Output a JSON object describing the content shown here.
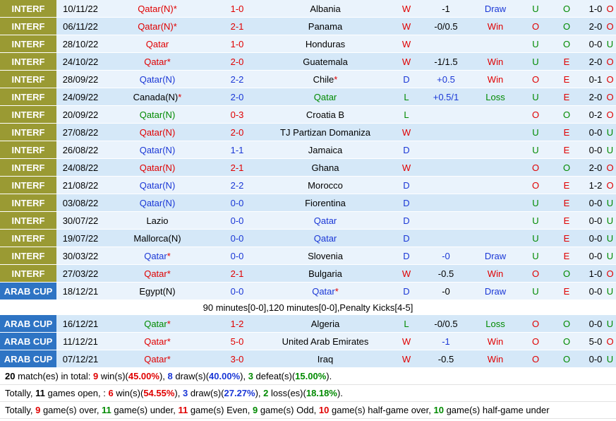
{
  "rows": [
    {
      "comp": "INTERF",
      "type": "interf",
      "date": "10/11/22",
      "home": "Qatar(N)",
      "home_star": "*",
      "home_color": "red",
      "score": "1-0",
      "score_color": "red",
      "away": "Albania",
      "away_star": "",
      "away_color": "black",
      "res": "W",
      "res_color": "red",
      "hcp": "-1",
      "hcp_color": "black",
      "ah": "Draw",
      "ah_color": "blue",
      "ou": "U",
      "ou_color": "green",
      "oe": "O",
      "oe_color": "green",
      "ht": "1-0",
      "last": "O",
      "last_color": "red"
    },
    {
      "comp": "INTERF",
      "type": "interf",
      "date": "06/11/22",
      "home": "Qatar(N)",
      "home_star": "*",
      "home_color": "red",
      "score": "2-1",
      "score_color": "red",
      "away": "Panama",
      "away_star": "",
      "away_color": "black",
      "res": "W",
      "res_color": "red",
      "hcp": "-0/0.5",
      "hcp_color": "black",
      "ah": "Win",
      "ah_color": "red",
      "ou": "O",
      "ou_color": "red",
      "oe": "O",
      "oe_color": "green",
      "ht": "2-0",
      "last": "O",
      "last_color": "red"
    },
    {
      "comp": "INTERF",
      "type": "interf",
      "date": "28/10/22",
      "home": "Qatar",
      "home_star": "",
      "home_color": "red",
      "score": "1-0",
      "score_color": "red",
      "away": "Honduras",
      "away_star": "",
      "away_color": "black",
      "res": "W",
      "res_color": "red",
      "hcp": "",
      "hcp_color": "black",
      "ah": "",
      "ah_color": "black",
      "ou": "U",
      "ou_color": "green",
      "oe": "O",
      "oe_color": "green",
      "ht": "0-0",
      "last": "U",
      "last_color": "green"
    },
    {
      "comp": "INTERF",
      "type": "interf",
      "date": "24/10/22",
      "home": "Qatar",
      "home_star": "*",
      "home_color": "red",
      "score": "2-0",
      "score_color": "red",
      "away": "Guatemala",
      "away_star": "",
      "away_color": "black",
      "res": "W",
      "res_color": "red",
      "hcp": "-1/1.5",
      "hcp_color": "black",
      "ah": "Win",
      "ah_color": "red",
      "ou": "U",
      "ou_color": "green",
      "oe": "E",
      "oe_color": "red",
      "ht": "2-0",
      "last": "O",
      "last_color": "red"
    },
    {
      "comp": "INTERF",
      "type": "interf",
      "date": "28/09/22",
      "home": "Qatar(N)",
      "home_star": "",
      "home_color": "blue",
      "score": "2-2",
      "score_color": "blue",
      "away": "Chile",
      "away_star": "*",
      "away_color": "black",
      "res": "D",
      "res_color": "blue",
      "hcp": "+0.5",
      "hcp_color": "blue",
      "ah": "Win",
      "ah_color": "red",
      "ou": "O",
      "ou_color": "red",
      "oe": "E",
      "oe_color": "red",
      "ht": "0-1",
      "last": "O",
      "last_color": "red"
    },
    {
      "comp": "INTERF",
      "type": "interf",
      "date": "24/09/22",
      "home": "Canada(N)",
      "home_star": "*",
      "home_color": "black",
      "score": "2-0",
      "score_color": "blue",
      "away": "Qatar",
      "away_star": "",
      "away_color": "green",
      "res": "L",
      "res_color": "green",
      "hcp": "+0.5/1",
      "hcp_color": "blue",
      "ah": "Loss",
      "ah_color": "green",
      "ou": "U",
      "ou_color": "green",
      "oe": "E",
      "oe_color": "red",
      "ht": "2-0",
      "last": "O",
      "last_color": "red"
    },
    {
      "comp": "INTERF",
      "type": "interf",
      "date": "20/09/22",
      "home": "Qatar(N)",
      "home_star": "",
      "home_color": "green",
      "score": "0-3",
      "score_color": "red",
      "away": "Croatia B",
      "away_star": "",
      "away_color": "black",
      "res": "L",
      "res_color": "green",
      "hcp": "",
      "hcp_color": "black",
      "ah": "",
      "ah_color": "black",
      "ou": "O",
      "ou_color": "red",
      "oe": "O",
      "oe_color": "green",
      "ht": "0-2",
      "last": "O",
      "last_color": "red"
    },
    {
      "comp": "INTERF",
      "type": "interf",
      "date": "27/08/22",
      "home": "Qatar(N)",
      "home_star": "",
      "home_color": "red",
      "score": "2-0",
      "score_color": "red",
      "away": "TJ Partizan Domaniza",
      "away_star": "",
      "away_color": "black",
      "res": "W",
      "res_color": "red",
      "hcp": "",
      "hcp_color": "black",
      "ah": "",
      "ah_color": "black",
      "ou": "U",
      "ou_color": "green",
      "oe": "E",
      "oe_color": "red",
      "ht": "0-0",
      "last": "U",
      "last_color": "green"
    },
    {
      "comp": "INTERF",
      "type": "interf",
      "date": "26/08/22",
      "home": "Qatar(N)",
      "home_star": "",
      "home_color": "blue",
      "score": "1-1",
      "score_color": "blue",
      "away": "Jamaica",
      "away_star": "",
      "away_color": "black",
      "res": "D",
      "res_color": "blue",
      "hcp": "",
      "hcp_color": "black",
      "ah": "",
      "ah_color": "black",
      "ou": "U",
      "ou_color": "green",
      "oe": "E",
      "oe_color": "red",
      "ht": "0-0",
      "last": "U",
      "last_color": "green"
    },
    {
      "comp": "INTERF",
      "type": "interf",
      "date": "24/08/22",
      "home": "Qatar(N)",
      "home_star": "",
      "home_color": "red",
      "score": "2-1",
      "score_color": "red",
      "away": "Ghana",
      "away_star": "",
      "away_color": "black",
      "res": "W",
      "res_color": "red",
      "hcp": "",
      "hcp_color": "black",
      "ah": "",
      "ah_color": "black",
      "ou": "O",
      "ou_color": "red",
      "oe": "O",
      "oe_color": "green",
      "ht": "2-0",
      "last": "O",
      "last_color": "red"
    },
    {
      "comp": "INTERF",
      "type": "interf",
      "date": "21/08/22",
      "home": "Qatar(N)",
      "home_star": "",
      "home_color": "blue",
      "score": "2-2",
      "score_color": "blue",
      "away": "Morocco",
      "away_star": "",
      "away_color": "black",
      "res": "D",
      "res_color": "blue",
      "hcp": "",
      "hcp_color": "black",
      "ah": "",
      "ah_color": "black",
      "ou": "O",
      "ou_color": "red",
      "oe": "E",
      "oe_color": "red",
      "ht": "1-2",
      "last": "O",
      "last_color": "red"
    },
    {
      "comp": "INTERF",
      "type": "interf",
      "date": "03/08/22",
      "home": "Qatar(N)",
      "home_star": "",
      "home_color": "blue",
      "score": "0-0",
      "score_color": "blue",
      "away": "Fiorentina",
      "away_star": "",
      "away_color": "black",
      "res": "D",
      "res_color": "blue",
      "hcp": "",
      "hcp_color": "black",
      "ah": "",
      "ah_color": "black",
      "ou": "U",
      "ou_color": "green",
      "oe": "E",
      "oe_color": "red",
      "ht": "0-0",
      "last": "U",
      "last_color": "green"
    },
    {
      "comp": "INTERF",
      "type": "interf",
      "date": "30/07/22",
      "home": "Lazio",
      "home_star": "",
      "home_color": "black",
      "score": "0-0",
      "score_color": "blue",
      "away": "Qatar",
      "away_star": "",
      "away_color": "blue",
      "res": "D",
      "res_color": "blue",
      "hcp": "",
      "hcp_color": "black",
      "ah": "",
      "ah_color": "black",
      "ou": "U",
      "ou_color": "green",
      "oe": "E",
      "oe_color": "red",
      "ht": "0-0",
      "last": "U",
      "last_color": "green"
    },
    {
      "comp": "INTERF",
      "type": "interf",
      "date": "19/07/22",
      "home": "Mallorca(N)",
      "home_star": "",
      "home_color": "black",
      "score": "0-0",
      "score_color": "blue",
      "away": "Qatar",
      "away_star": "",
      "away_color": "blue",
      "res": "D",
      "res_color": "blue",
      "hcp": "",
      "hcp_color": "black",
      "ah": "",
      "ah_color": "black",
      "ou": "U",
      "ou_color": "green",
      "oe": "E",
      "oe_color": "red",
      "ht": "0-0",
      "last": "U",
      "last_color": "green"
    },
    {
      "comp": "INTERF",
      "type": "interf",
      "date": "30/03/22",
      "home": "Qatar",
      "home_star": "*",
      "home_color": "blue",
      "score": "0-0",
      "score_color": "blue",
      "away": "Slovenia",
      "away_star": "",
      "away_color": "black",
      "res": "D",
      "res_color": "blue",
      "hcp": "-0",
      "hcp_color": "blue",
      "ah": "Draw",
      "ah_color": "blue",
      "ou": "U",
      "ou_color": "green",
      "oe": "E",
      "oe_color": "red",
      "ht": "0-0",
      "last": "U",
      "last_color": "green"
    },
    {
      "comp": "INTERF",
      "type": "interf",
      "date": "27/03/22",
      "home": "Qatar",
      "home_star": "*",
      "home_color": "red",
      "score": "2-1",
      "score_color": "red",
      "away": "Bulgaria",
      "away_star": "",
      "away_color": "black",
      "res": "W",
      "res_color": "red",
      "hcp": "-0.5",
      "hcp_color": "black",
      "ah": "Win",
      "ah_color": "red",
      "ou": "O",
      "ou_color": "red",
      "oe": "O",
      "oe_color": "green",
      "ht": "1-0",
      "last": "O",
      "last_color": "red"
    },
    {
      "comp": "ARAB CUP",
      "type": "arab",
      "date": "18/12/21",
      "home": "Egypt(N)",
      "home_star": "",
      "home_color": "black",
      "score": "0-0",
      "score_color": "blue",
      "away": "Qatar",
      "away_star": "*",
      "away_color": "blue",
      "res": "D",
      "res_color": "blue",
      "hcp": "-0",
      "hcp_color": "black",
      "ah": "Draw",
      "ah_color": "blue",
      "ou": "U",
      "ou_color": "green",
      "oe": "E",
      "oe_color": "red",
      "ht": "0-0",
      "last": "U",
      "last_color": "green"
    },
    {
      "comp": "ARAB CUP",
      "type": "arab",
      "date": "16/12/21",
      "home": "Qatar",
      "home_star": "*",
      "home_color": "green",
      "score": "1-2",
      "score_color": "red",
      "away": "Algeria",
      "away_star": "",
      "away_color": "black",
      "res": "L",
      "res_color": "green",
      "hcp": "-0/0.5",
      "hcp_color": "black",
      "ah": "Loss",
      "ah_color": "green",
      "ou": "O",
      "ou_color": "red",
      "oe": "O",
      "oe_color": "green",
      "ht": "0-0",
      "last": "U",
      "last_color": "green"
    },
    {
      "comp": "ARAB CUP",
      "type": "arab",
      "date": "11/12/21",
      "home": "Qatar",
      "home_star": "*",
      "home_color": "red",
      "score": "5-0",
      "score_color": "red",
      "away": "United Arab Emirates",
      "away_star": "",
      "away_color": "black",
      "res": "W",
      "res_color": "red",
      "hcp": "-1",
      "hcp_color": "blue",
      "ah": "Win",
      "ah_color": "red",
      "ou": "O",
      "ou_color": "red",
      "oe": "O",
      "oe_color": "green",
      "ht": "5-0",
      "last": "O",
      "last_color": "red"
    },
    {
      "comp": "ARAB CUP",
      "type": "arab",
      "date": "07/12/21",
      "home": "Qatar",
      "home_star": "*",
      "home_color": "red",
      "score": "3-0",
      "score_color": "red",
      "away": "Iraq",
      "away_star": "",
      "away_color": "black",
      "res": "W",
      "res_color": "red",
      "hcp": "-0.5",
      "hcp_color": "black",
      "ah": "Win",
      "ah_color": "red",
      "ou": "O",
      "ou_color": "red",
      "oe": "O",
      "oe_color": "green",
      "ht": "0-0",
      "last": "U",
      "last_color": "green"
    }
  ],
  "note_after_index": 16,
  "note_text": "90 minutes[0-0],120 minutes[0-0],Penalty Kicks[4-5]",
  "summary": {
    "line1": {
      "total": "20",
      "t1": " match(es) in total: ",
      "wins": "9",
      "t2": " win(s)(",
      "win_pct": "45.00%",
      "t3": "), ",
      "draws": "8",
      "t4": " draw(s)(",
      "draw_pct": "40.00%",
      "t5": "), ",
      "defeats": "3",
      "t6": " defeat(s)(",
      "defeat_pct": "15.00%",
      "t7": ")."
    },
    "line2": {
      "t0": "Totally, ",
      "open": "11",
      "t1": " games open, : ",
      "wins": "6",
      "t2": " win(s)(",
      "win_pct": "54.55%",
      "t3": "), ",
      "draws": "3",
      "t4": " draw(s)(",
      "draw_pct": "27.27%",
      "t5": "), ",
      "losses": "2",
      "t6": " loss(es)(",
      "loss_pct": "18.18%",
      "t7": ")."
    },
    "line3": {
      "t0": "Totally, ",
      "over": "9",
      "t1": " game(s) over, ",
      "under": "11",
      "t2": " game(s) under, ",
      "even": "11",
      "t3": " game(s) Even, ",
      "odd": "9",
      "t4": " game(s) Odd, ",
      "hg_over": "10",
      "t5": " game(s) half-game over, ",
      "hg_under": "10",
      "t6": " game(s) half-game under"
    }
  },
  "colors": {
    "red": "#e00000",
    "blue": "#1a37d6",
    "green": "#008a00",
    "black": "#000000",
    "interf_bg": "#9a9a33",
    "arab_bg": "#2e74c4"
  }
}
